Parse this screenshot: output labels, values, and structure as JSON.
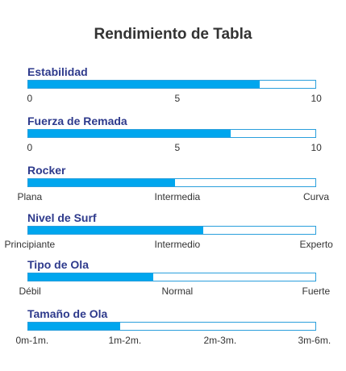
{
  "title": "Rendimiento de Tabla",
  "colors": {
    "fill": "#00a6ee",
    "border": "#2a9fdc",
    "label": "#2e3a8c",
    "text": "#333333"
  },
  "chart_data": {
    "type": "bar",
    "orientation": "horizontal",
    "title": "Rendimiento de Tabla",
    "metrics": [
      {
        "label": "Estabilidad",
        "value": 0.805,
        "ticks": [
          "0",
          "5",
          "10"
        ]
      },
      {
        "label": "Fuerza de Remada",
        "value": 0.705,
        "ticks": [
          "0",
          "5",
          "10"
        ]
      },
      {
        "label": "Rocker",
        "value": 0.51,
        "ticks": [
          "Plana",
          "Intermedia",
          "Curva"
        ]
      },
      {
        "label": "Nivel de Surf",
        "value": 0.61,
        "ticks": [
          "Principiante",
          "Intermedio",
          "Experto"
        ]
      },
      {
        "label": "Tipo de Ola",
        "value": 0.435,
        "ticks": [
          "Débil",
          "Normal",
          "Fuerte"
        ]
      },
      {
        "label": "Tamaño de Ola",
        "value": 0.32,
        "ticks": [
          "0m-1m.",
          "1m-2m.",
          "2m-3m.",
          "3m-6m."
        ]
      }
    ]
  }
}
